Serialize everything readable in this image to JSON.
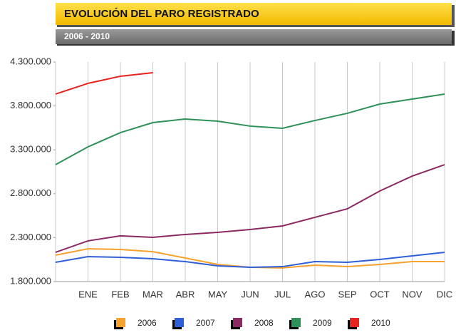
{
  "chart_data": {
    "type": "line",
    "title": "EVOLUCIÓN DEL PARO REGISTRADO",
    "subtitle": "2006 - 2010",
    "categories": [
      null,
      "ENE",
      "FEB",
      "MAR",
      "ABR",
      "MAY",
      "JUN",
      "JUL",
      "AGO",
      "SEP",
      "OCT",
      "NOV",
      "DIC"
    ],
    "series": [
      {
        "name": "2006",
        "color": "#f7a12e",
        "values": [
          2100000,
          2173000,
          2165000,
          2140000,
          2068000,
          1995000,
          1962000,
          1955000,
          1987000,
          1970000,
          1995000,
          2027000,
          2027000
        ]
      },
      {
        "name": "2007",
        "color": "#2f5fd8",
        "values": [
          2019000,
          2084000,
          2076000,
          2060000,
          2027000,
          1979000,
          1962000,
          1970000,
          2027000,
          2019000,
          2052000,
          2092000,
          2133000
        ]
      },
      {
        "name": "2008",
        "color": "#8b2a62",
        "values": [
          2133000,
          2263000,
          2320000,
          2303000,
          2336000,
          2360000,
          2393000,
          2433000,
          2531000,
          2628000,
          2831000,
          3001000,
          3131000
        ]
      },
      {
        "name": "2009",
        "color": "#2e9158",
        "values": [
          3131000,
          3334000,
          3496000,
          3610000,
          3651000,
          3626000,
          3570000,
          3545000,
          3634000,
          3716000,
          3821000,
          3878000,
          3935000
        ]
      },
      {
        "name": "2010",
        "color": "#e8231f",
        "values": [
          3935000,
          4057000,
          4138000,
          4178000,
          null,
          null,
          null,
          null,
          null,
          null,
          null,
          null,
          null
        ]
      }
    ],
    "ylim": [
      1800000,
      4300000
    ],
    "yticks": [
      {
        "value": 1800000,
        "label": "1.800.000"
      },
      {
        "value": 2300000,
        "label": "2.300.000"
      },
      {
        "value": 2800000,
        "label": "2.800.000"
      },
      {
        "value": 3300000,
        "label": "3.300.000"
      },
      {
        "value": 3800000,
        "label": "3.800.000"
      },
      {
        "value": 4300000,
        "label": "4.300.000"
      }
    ],
    "grid": "vertical",
    "legend": "bottom"
  }
}
